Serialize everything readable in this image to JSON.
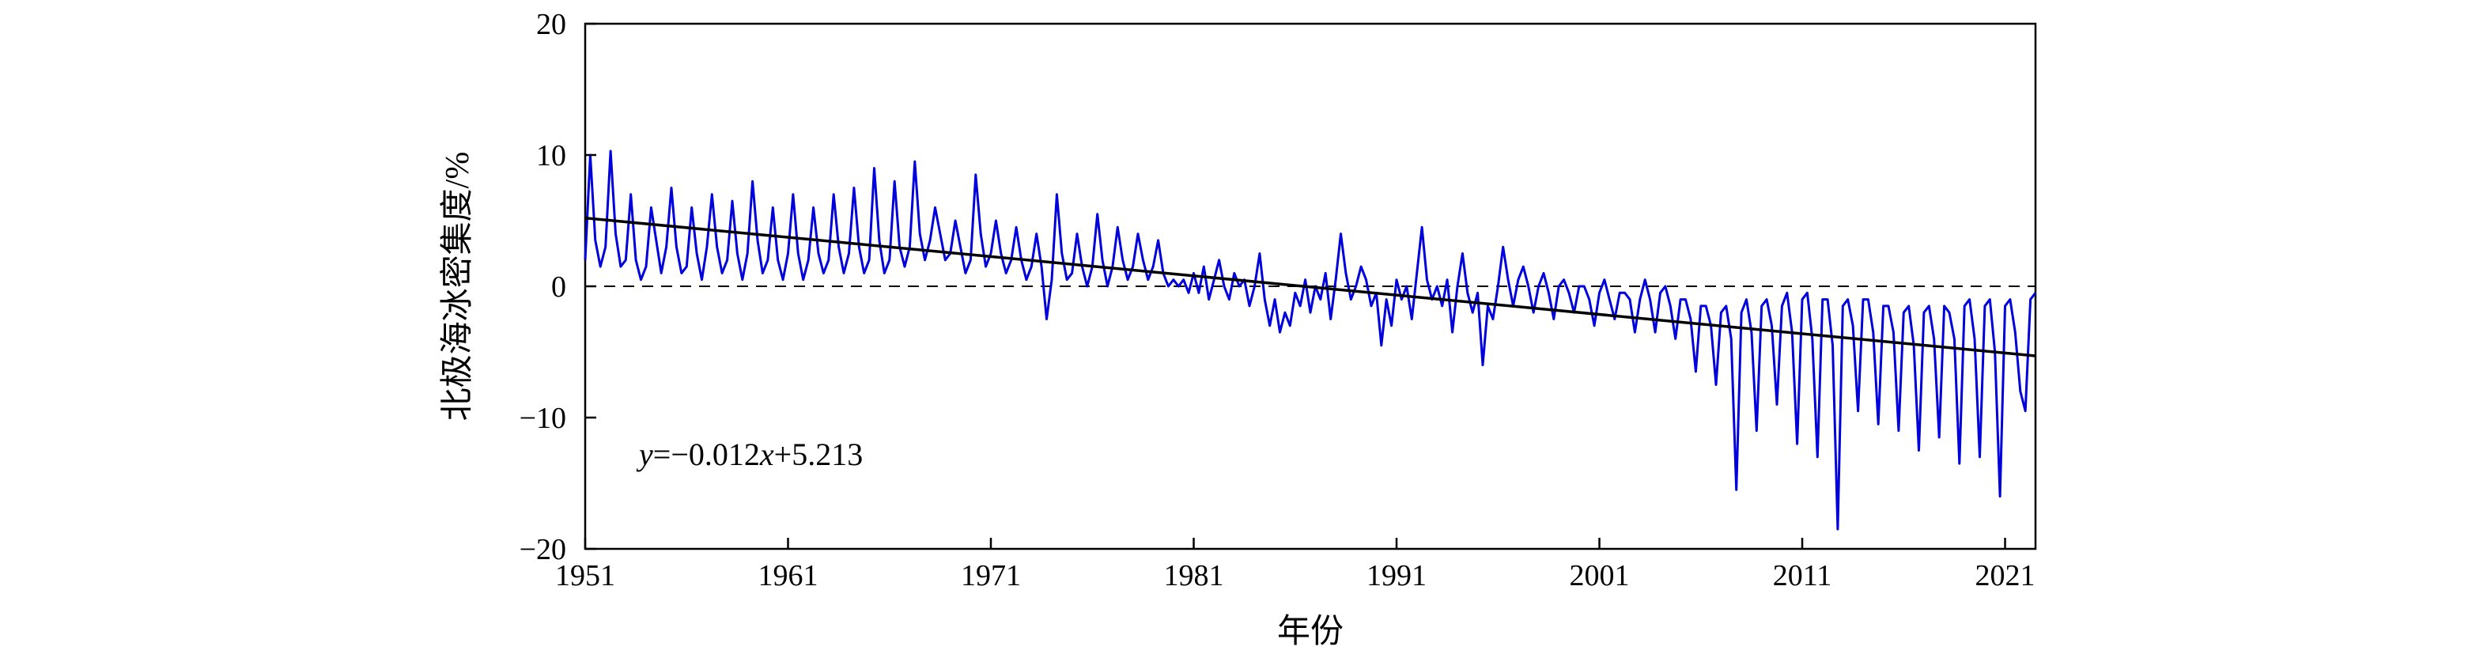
{
  "chart_data": {
    "type": "line",
    "title": "",
    "xlabel": "年份",
    "ylabel": "北极海冰密集度/%",
    "xlim": [
      1951,
      2022.5
    ],
    "ylim": [
      -20,
      20
    ],
    "x_ticks": [
      1951,
      1961,
      1971,
      1981,
      1991,
      2001,
      2011,
      2021
    ],
    "x_tick_labels": [
      "1951",
      "1961",
      "1971",
      "1981",
      "1991",
      "2001",
      "2011",
      "2021"
    ],
    "y_ticks": [
      -20,
      -10,
      0,
      10,
      20
    ],
    "y_tick_labels": [
      "−20",
      "−10",
      "0",
      "10",
      "20"
    ],
    "grid": false,
    "legend": "none",
    "zero_line": {
      "y": 0,
      "style": "dashed",
      "color": "#000000"
    },
    "trend": {
      "equation_label": {
        "y": "y",
        "eq": "=−0.012",
        "x": "x",
        "rest": "+5.213"
      },
      "slope_per_year": -0.146,
      "start": {
        "x": 1951,
        "y": 5.2
      },
      "end": {
        "x": 2022.5,
        "y": -5.3
      },
      "color": "#000000"
    },
    "series": [
      {
        "color": "#0000dd",
        "points": [
          [
            1951.0,
            2.0
          ],
          [
            1951.25,
            10.0
          ],
          [
            1951.5,
            3.5
          ],
          [
            1951.75,
            1.5
          ],
          [
            1952.0,
            3.0
          ],
          [
            1952.25,
            10.3
          ],
          [
            1952.5,
            4.0
          ],
          [
            1952.75,
            1.5
          ],
          [
            1953.0,
            2.0
          ],
          [
            1953.25,
            7.0
          ],
          [
            1953.5,
            2.0
          ],
          [
            1953.75,
            0.5
          ],
          [
            1954.0,
            1.5
          ],
          [
            1954.25,
            6.0
          ],
          [
            1954.5,
            3.5
          ],
          [
            1954.75,
            1.0
          ],
          [
            1955.0,
            3.0
          ],
          [
            1955.25,
            7.5
          ],
          [
            1955.5,
            3.0
          ],
          [
            1955.75,
            1.0
          ],
          [
            1956.0,
            1.5
          ],
          [
            1956.25,
            6.0
          ],
          [
            1956.5,
            2.5
          ],
          [
            1956.75,
            0.5
          ],
          [
            1957.0,
            3.0
          ],
          [
            1957.25,
            7.0
          ],
          [
            1957.5,
            3.0
          ],
          [
            1957.75,
            1.0
          ],
          [
            1958.0,
            2.0
          ],
          [
            1958.25,
            6.5
          ],
          [
            1958.5,
            2.5
          ],
          [
            1958.75,
            0.5
          ],
          [
            1959.0,
            2.5
          ],
          [
            1959.25,
            8.0
          ],
          [
            1959.5,
            3.5
          ],
          [
            1959.75,
            1.0
          ],
          [
            1960.0,
            2.0
          ],
          [
            1960.25,
            6.0
          ],
          [
            1960.5,
            2.0
          ],
          [
            1960.75,
            0.5
          ],
          [
            1961.0,
            2.5
          ],
          [
            1961.25,
            7.0
          ],
          [
            1961.5,
            2.5
          ],
          [
            1961.75,
            0.5
          ],
          [
            1962.0,
            2.0
          ],
          [
            1962.25,
            6.0
          ],
          [
            1962.5,
            2.5
          ],
          [
            1962.75,
            1.0
          ],
          [
            1963.0,
            2.0
          ],
          [
            1963.25,
            7.0
          ],
          [
            1963.5,
            3.0
          ],
          [
            1963.75,
            1.0
          ],
          [
            1964.0,
            2.5
          ],
          [
            1964.25,
            7.5
          ],
          [
            1964.5,
            3.0
          ],
          [
            1964.75,
            1.0
          ],
          [
            1965.0,
            2.0
          ],
          [
            1965.25,
            9.0
          ],
          [
            1965.5,
            3.5
          ],
          [
            1965.75,
            1.0
          ],
          [
            1966.0,
            2.0
          ],
          [
            1966.25,
            8.0
          ],
          [
            1966.5,
            3.0
          ],
          [
            1966.75,
            1.5
          ],
          [
            1967.0,
            3.0
          ],
          [
            1967.25,
            9.5
          ],
          [
            1967.5,
            4.0
          ],
          [
            1967.75,
            2.0
          ],
          [
            1968.0,
            3.5
          ],
          [
            1968.25,
            6.0
          ],
          [
            1968.5,
            4.0
          ],
          [
            1968.75,
            2.0
          ],
          [
            1969.0,
            2.5
          ],
          [
            1969.25,
            5.0
          ],
          [
            1969.5,
            3.0
          ],
          [
            1969.75,
            1.0
          ],
          [
            1970.0,
            2.0
          ],
          [
            1970.25,
            8.5
          ],
          [
            1970.5,
            4.0
          ],
          [
            1970.75,
            1.5
          ],
          [
            1971.0,
            2.5
          ],
          [
            1971.25,
            5.0
          ],
          [
            1971.5,
            2.5
          ],
          [
            1971.75,
            1.0
          ],
          [
            1972.0,
            2.0
          ],
          [
            1972.25,
            4.5
          ],
          [
            1972.5,
            2.0
          ],
          [
            1972.75,
            0.5
          ],
          [
            1973.0,
            1.5
          ],
          [
            1973.25,
            4.0
          ],
          [
            1973.5,
            1.5
          ],
          [
            1973.75,
            -2.5
          ],
          [
            1974.0,
            0.5
          ],
          [
            1974.25,
            7.0
          ],
          [
            1974.5,
            2.5
          ],
          [
            1974.75,
            0.5
          ],
          [
            1975.0,
            1.0
          ],
          [
            1975.25,
            4.0
          ],
          [
            1975.5,
            1.5
          ],
          [
            1975.75,
            0.0
          ],
          [
            1976.0,
            1.5
          ],
          [
            1976.25,
            5.5
          ],
          [
            1976.5,
            2.0
          ],
          [
            1976.75,
            0.0
          ],
          [
            1977.0,
            1.5
          ],
          [
            1977.25,
            4.5
          ],
          [
            1977.5,
            2.0
          ],
          [
            1977.75,
            0.5
          ],
          [
            1978.0,
            1.5
          ],
          [
            1978.25,
            4.0
          ],
          [
            1978.5,
            2.0
          ],
          [
            1978.75,
            0.5
          ],
          [
            1979.0,
            1.5
          ],
          [
            1979.25,
            3.5
          ],
          [
            1979.5,
            1.0
          ],
          [
            1979.75,
            0.0
          ],
          [
            1980.0,
            0.5
          ],
          [
            1980.25,
            0.0
          ],
          [
            1980.5,
            0.5
          ],
          [
            1980.75,
            -0.5
          ],
          [
            1981.0,
            1.0
          ],
          [
            1981.25,
            -0.5
          ],
          [
            1981.5,
            1.5
          ],
          [
            1981.75,
            -1.0
          ],
          [
            1982.0,
            0.5
          ],
          [
            1982.25,
            2.0
          ],
          [
            1982.5,
            0.0
          ],
          [
            1982.75,
            -1.0
          ],
          [
            1983.0,
            1.0
          ],
          [
            1983.25,
            0.0
          ],
          [
            1983.5,
            0.5
          ],
          [
            1983.75,
            -1.5
          ],
          [
            1984.0,
            0.0
          ],
          [
            1984.25,
            2.5
          ],
          [
            1984.5,
            -1.0
          ],
          [
            1984.75,
            -3.0
          ],
          [
            1985.0,
            -1.0
          ],
          [
            1985.25,
            -3.5
          ],
          [
            1985.5,
            -2.0
          ],
          [
            1985.75,
            -3.0
          ],
          [
            1986.0,
            -0.5
          ],
          [
            1986.25,
            -1.5
          ],
          [
            1986.5,
            0.5
          ],
          [
            1986.75,
            -2.0
          ],
          [
            1987.0,
            0.0
          ],
          [
            1987.25,
            -1.0
          ],
          [
            1987.5,
            1.0
          ],
          [
            1987.75,
            -2.5
          ],
          [
            1988.0,
            0.5
          ],
          [
            1988.25,
            4.0
          ],
          [
            1988.5,
            1.0
          ],
          [
            1988.75,
            -1.0
          ],
          [
            1989.0,
            0.0
          ],
          [
            1989.25,
            1.5
          ],
          [
            1989.5,
            0.5
          ],
          [
            1989.75,
            -1.5
          ],
          [
            1990.0,
            -0.5
          ],
          [
            1990.25,
            -4.5
          ],
          [
            1990.5,
            -1.0
          ],
          [
            1990.75,
            -3.0
          ],
          [
            1991.0,
            0.5
          ],
          [
            1991.25,
            -1.0
          ],
          [
            1991.5,
            0.0
          ],
          [
            1991.75,
            -2.5
          ],
          [
            1992.0,
            1.0
          ],
          [
            1992.25,
            4.5
          ],
          [
            1992.5,
            0.5
          ],
          [
            1992.75,
            -1.0
          ],
          [
            1993.0,
            0.0
          ],
          [
            1993.25,
            -1.5
          ],
          [
            1993.5,
            0.5
          ],
          [
            1993.75,
            -3.5
          ],
          [
            1994.0,
            0.0
          ],
          [
            1994.25,
            2.5
          ],
          [
            1994.5,
            -0.5
          ],
          [
            1994.75,
            -2.0
          ],
          [
            1995.0,
            -0.5
          ],
          [
            1995.25,
            -6.0
          ],
          [
            1995.5,
            -1.5
          ],
          [
            1995.75,
            -2.5
          ],
          [
            1996.0,
            0.0
          ],
          [
            1996.25,
            3.0
          ],
          [
            1996.5,
            0.5
          ],
          [
            1996.75,
            -1.5
          ],
          [
            1997.0,
            0.5
          ],
          [
            1997.25,
            1.5
          ],
          [
            1997.5,
            0.0
          ],
          [
            1997.75,
            -2.0
          ],
          [
            1998.0,
            0.0
          ],
          [
            1998.25,
            1.0
          ],
          [
            1998.5,
            -0.5
          ],
          [
            1998.75,
            -2.5
          ],
          [
            1999.0,
            0.0
          ],
          [
            1999.25,
            0.5
          ],
          [
            1999.5,
            -0.5
          ],
          [
            1999.75,
            -2.0
          ],
          [
            2000.0,
            0.0
          ],
          [
            2000.25,
            0.0
          ],
          [
            2000.5,
            -1.0
          ],
          [
            2000.75,
            -3.0
          ],
          [
            2001.0,
            -0.5
          ],
          [
            2001.25,
            0.5
          ],
          [
            2001.5,
            -1.0
          ],
          [
            2001.75,
            -2.5
          ],
          [
            2002.0,
            -0.5
          ],
          [
            2002.25,
            -0.5
          ],
          [
            2002.5,
            -1.0
          ],
          [
            2002.75,
            -3.5
          ],
          [
            2003.0,
            -1.0
          ],
          [
            2003.25,
            0.5
          ],
          [
            2003.5,
            -1.0
          ],
          [
            2003.75,
            -3.5
          ],
          [
            2004.0,
            -0.5
          ],
          [
            2004.25,
            0.0
          ],
          [
            2004.5,
            -1.5
          ],
          [
            2004.75,
            -4.0
          ],
          [
            2005.0,
            -1.0
          ],
          [
            2005.25,
            -1.0
          ],
          [
            2005.5,
            -2.5
          ],
          [
            2005.75,
            -6.5
          ],
          [
            2006.0,
            -1.5
          ],
          [
            2006.25,
            -1.5
          ],
          [
            2006.5,
            -3.0
          ],
          [
            2006.75,
            -7.5
          ],
          [
            2007.0,
            -2.0
          ],
          [
            2007.25,
            -1.5
          ],
          [
            2007.5,
            -4.0
          ],
          [
            2007.75,
            -15.5
          ],
          [
            2008.0,
            -2.0
          ],
          [
            2008.25,
            -1.0
          ],
          [
            2008.5,
            -3.5
          ],
          [
            2008.75,
            -11.0
          ],
          [
            2009.0,
            -1.5
          ],
          [
            2009.25,
            -1.0
          ],
          [
            2009.5,
            -3.0
          ],
          [
            2009.75,
            -9.0
          ],
          [
            2010.0,
            -1.5
          ],
          [
            2010.25,
            -0.5
          ],
          [
            2010.5,
            -3.5
          ],
          [
            2010.75,
            -12.0
          ],
          [
            2011.0,
            -1.0
          ],
          [
            2011.25,
            -0.5
          ],
          [
            2011.5,
            -4.0
          ],
          [
            2011.75,
            -13.0
          ],
          [
            2012.0,
            -1.0
          ],
          [
            2012.25,
            -1.0
          ],
          [
            2012.5,
            -4.5
          ],
          [
            2012.75,
            -18.5
          ],
          [
            2013.0,
            -1.5
          ],
          [
            2013.25,
            -1.0
          ],
          [
            2013.5,
            -3.0
          ],
          [
            2013.75,
            -9.5
          ],
          [
            2014.0,
            -1.0
          ],
          [
            2014.25,
            -1.0
          ],
          [
            2014.5,
            -3.5
          ],
          [
            2014.75,
            -10.5
          ],
          [
            2015.0,
            -1.5
          ],
          [
            2015.25,
            -1.5
          ],
          [
            2015.5,
            -3.5
          ],
          [
            2015.75,
            -11.0
          ],
          [
            2016.0,
            -2.0
          ],
          [
            2016.25,
            -1.5
          ],
          [
            2016.5,
            -4.5
          ],
          [
            2016.75,
            -12.5
          ],
          [
            2017.0,
            -2.0
          ],
          [
            2017.25,
            -1.5
          ],
          [
            2017.5,
            -4.0
          ],
          [
            2017.75,
            -11.5
          ],
          [
            2018.0,
            -1.5
          ],
          [
            2018.25,
            -2.0
          ],
          [
            2018.5,
            -4.0
          ],
          [
            2018.75,
            -13.5
          ],
          [
            2019.0,
            -1.5
          ],
          [
            2019.25,
            -1.0
          ],
          [
            2019.5,
            -4.0
          ],
          [
            2019.75,
            -13.0
          ],
          [
            2020.0,
            -1.5
          ],
          [
            2020.25,
            -1.0
          ],
          [
            2020.5,
            -5.0
          ],
          [
            2020.75,
            -16.0
          ],
          [
            2021.0,
            -1.5
          ],
          [
            2021.25,
            -1.0
          ],
          [
            2021.5,
            -3.5
          ],
          [
            2021.75,
            -8.0
          ],
          [
            2022.0,
            -9.5
          ],
          [
            2022.25,
            -1.0
          ],
          [
            2022.5,
            -0.5
          ]
        ]
      }
    ]
  }
}
